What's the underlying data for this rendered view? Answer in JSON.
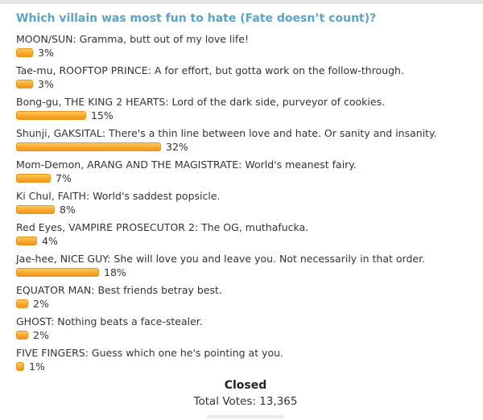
{
  "poll": {
    "title": "Which villain was most fun to hate (Fate doesn’t count)?",
    "options": [
      {
        "label": "MOON/SUN: Gramma, butt out of my love life!",
        "pct": 3,
        "pct_label": "3%"
      },
      {
        "label": "Tae-mu, ROOFTOP PRINCE: A for effort, but gotta work on the follow-through.",
        "pct": 3,
        "pct_label": "3%"
      },
      {
        "label": "Bong-gu, THE KING 2 HEARTS: Lord of the dark side, purveyor of cookies.",
        "pct": 15,
        "pct_label": "15%"
      },
      {
        "label": "Shunji, GAKSITAL: There's a thin line between love and hate. Or sanity and insanity.",
        "pct": 32,
        "pct_label": "32%"
      },
      {
        "label": "Mom-Demon, ARANG AND THE MAGISTRATE: World's meanest fairy.",
        "pct": 7,
        "pct_label": "7%"
      },
      {
        "label": "Ki Chul, FAITH: World's saddest popsicle.",
        "pct": 8,
        "pct_label": "8%"
      },
      {
        "label": "Red Eyes, VAMPIRE PROSECUTOR 2: The OG, muthafucka.",
        "pct": 4,
        "pct_label": "4%"
      },
      {
        "label": "Jae-hee, NICE GUY: She will love you and leave you. Not necessarily in that order.",
        "pct": 18,
        "pct_label": "18%"
      },
      {
        "label": "EQUATOR MAN: Best friends betray best.",
        "pct": 2,
        "pct_label": "2%"
      },
      {
        "label": "GHOST: Nothing beats a face-stealer.",
        "pct": 2,
        "pct_label": "2%"
      },
      {
        "label": "FIVE FINGERS: Guess which one he's pointing at you.",
        "pct": 1,
        "pct_label": "1%"
      }
    ],
    "status_label": "Closed",
    "total_votes_label": "Total Votes: 13,365"
  },
  "chart_data": {
    "type": "bar",
    "orientation": "horizontal",
    "title": "Which villain was most fun to hate (Fate doesn’t count)?",
    "categories": [
      "MOON/SUN: Gramma, butt out of my love life!",
      "Tae-mu, ROOFTOP PRINCE: A for effort, but gotta work on the follow-through.",
      "Bong-gu, THE KING 2 HEARTS: Lord of the dark side, purveyor of cookies.",
      "Shunji, GAKSITAL: There's a thin line between love and hate. Or sanity and insanity.",
      "Mom-Demon, ARANG AND THE MAGISTRATE: World's meanest fairy.",
      "Ki Chul, FAITH: World's saddest popsicle.",
      "Red Eyes, VAMPIRE PROSECUTOR 2: The OG, muthafucka.",
      "Jae-hee, NICE GUY: She will love you and leave you. Not necessarily in that order.",
      "EQUATOR MAN: Best friends betray best.",
      "GHOST: Nothing beats a face-stealer.",
      "FIVE FINGERS: Guess which one he's pointing at you."
    ],
    "values": [
      3,
      3,
      15,
      32,
      7,
      8,
      4,
      18,
      2,
      2,
      1
    ],
    "value_suffix": "%",
    "xlim": [
      0,
      100
    ],
    "grid": false,
    "legend": false,
    "status": "Closed",
    "total_votes": 13365,
    "bar_color": "#faa92c"
  },
  "colors": {
    "title_blue": "#5ba3cb",
    "label_text": "#333333",
    "bar_border": "#ed9415",
    "bar_gradient_top": "#fdc95e",
    "bar_gradient_bottom": "#f0961c"
  }
}
